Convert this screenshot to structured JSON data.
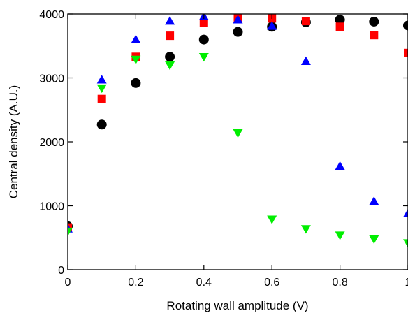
{
  "chart_data": {
    "type": "scatter",
    "title": "",
    "xlabel": "Rotating wall amplitude (V)",
    "ylabel": "Central density (A.U.)",
    "xlim": [
      0,
      1
    ],
    "ylim": [
      0,
      4000
    ],
    "x_ticks": [
      0,
      0.2,
      0.4,
      0.6,
      0.8,
      1
    ],
    "x_tick_labels": [
      "0",
      "0.2",
      "0.4",
      "0.6",
      "0.8",
      "1"
    ],
    "y_ticks": [
      0,
      1000,
      2000,
      3000,
      4000
    ],
    "y_tick_labels": [
      "0",
      "1000",
      "2000",
      "3000",
      "4000"
    ],
    "grid": false,
    "series": [
      {
        "marker": "circle",
        "color": "#000000",
        "points": [
          [
            0,
            680
          ],
          [
            0.1,
            2270
          ],
          [
            0.2,
            2920
          ],
          [
            0.3,
            3330
          ],
          [
            0.4,
            3600
          ],
          [
            0.5,
            3720
          ],
          [
            0.6,
            3800
          ],
          [
            0.7,
            3870
          ],
          [
            0.8,
            3910
          ],
          [
            0.9,
            3880
          ],
          [
            1.0,
            3820
          ]
        ]
      },
      {
        "marker": "square",
        "color": "#ff0000",
        "points": [
          [
            0,
            660
          ],
          [
            0.1,
            2670
          ],
          [
            0.2,
            3330
          ],
          [
            0.3,
            3660
          ],
          [
            0.4,
            3860
          ],
          [
            0.5,
            3940
          ],
          [
            0.6,
            3930
          ],
          [
            0.7,
            3890
          ],
          [
            0.8,
            3800
          ],
          [
            0.9,
            3670
          ],
          [
            1.0,
            3390
          ]
        ]
      },
      {
        "marker": "triangle-up",
        "color": "#0000ff",
        "points": [
          [
            0,
            640
          ],
          [
            0.1,
            2970
          ],
          [
            0.2,
            3600
          ],
          [
            0.3,
            3890
          ],
          [
            0.4,
            3960
          ],
          [
            0.5,
            3910
          ],
          [
            0.6,
            3810
          ],
          [
            0.7,
            3260
          ],
          [
            0.8,
            1620
          ],
          [
            0.9,
            1070
          ],
          [
            1.0,
            880
          ]
        ]
      },
      {
        "marker": "triangle-down",
        "color": "#00ee00",
        "points": [
          [
            0,
            600
          ],
          [
            0.1,
            2840
          ],
          [
            0.2,
            3290
          ],
          [
            0.3,
            3200
          ],
          [
            0.4,
            3330
          ],
          [
            0.5,
            2140
          ],
          [
            0.6,
            790
          ],
          [
            0.7,
            640
          ],
          [
            0.8,
            540
          ],
          [
            0.9,
            480
          ],
          [
            1.0,
            420
          ]
        ]
      }
    ]
  }
}
